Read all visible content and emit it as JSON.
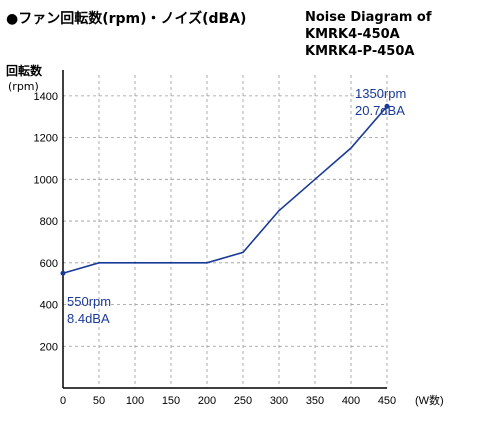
{
  "title_jp": "●ファン回転数(rpm)・ノイズ(dBA)",
  "title_en": [
    "Noise Diagram of",
    "KMRK4-450A",
    "KMRK4-P-450A"
  ],
  "chart_data": {
    "type": "line",
    "title": "Noise Diagram of KMRK4-450A KMRK4-P-450A",
    "ylabel": "回転数",
    "yunit": "(rpm)",
    "xunit": "(W数)",
    "x": [
      0,
      50,
      200,
      250,
      300,
      350,
      400,
      450
    ],
    "series": [
      {
        "values": [
          550,
          600,
          600,
          650,
          850,
          1000,
          1150,
          1350
        ]
      }
    ],
    "xlim": [
      0,
      450
    ],
    "ylim": [
      0,
      1500
    ],
    "xticks": [
      0,
      50,
      100,
      150,
      200,
      250,
      300,
      350,
      400,
      450
    ],
    "yticks": [
      200,
      400,
      600,
      800,
      1000,
      1200,
      1400
    ],
    "grid": true,
    "line_color": "#1a3a9a",
    "annotations": [
      {
        "lines": [
          "550rpm",
          "8.4dBA"
        ],
        "x": 0,
        "y": 550
      },
      {
        "lines": [
          "1350rpm",
          "20.7dBA"
        ],
        "x": 450,
        "y": 1350
      }
    ]
  }
}
